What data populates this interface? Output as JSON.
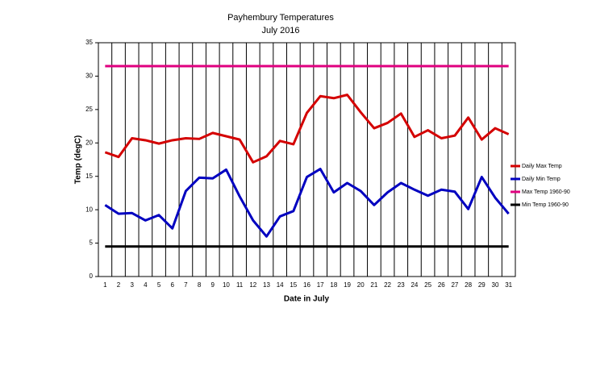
{
  "chart_data": {
    "type": "line",
    "title": "Payhembury Temperatures",
    "subtitle": "July 2016",
    "x_label": "Date in July",
    "y_label": "Temp (degC)",
    "categories": [
      "1",
      "2",
      "3",
      "4",
      "5",
      "6",
      "7",
      "8",
      "9",
      "10",
      "11",
      "12",
      "13",
      "14",
      "15",
      "16",
      "17",
      "18",
      "19",
      "20",
      "21",
      "22",
      "23",
      "24",
      "25",
      "26",
      "27",
      "28",
      "29",
      "30",
      "31"
    ],
    "series": [
      {
        "name": "Daily Max Temp",
        "color": "#d40000",
        "values": [
          18.6,
          17.9,
          20.7,
          20.4,
          19.9,
          20.4,
          20.7,
          20.6,
          21.5,
          21.0,
          20.5,
          17.1,
          18.0,
          20.3,
          19.8,
          24.5,
          27.0,
          26.7,
          27.2,
          24.6,
          22.2,
          23.0,
          24.4,
          20.9,
          21.9,
          20.7,
          21.1,
          23.8,
          20.5,
          22.2,
          21.3
        ]
      },
      {
        "name": "Daily Min Temp",
        "color": "#0000c0",
        "values": [
          10.7,
          9.4,
          9.5,
          8.4,
          9.2,
          7.2,
          12.8,
          14.8,
          14.7,
          16.0,
          12.0,
          8.4,
          6.0,
          9.0,
          9.8,
          14.9,
          16.1,
          12.6,
          14.0,
          12.8,
          10.7,
          12.6,
          14.0,
          13.0,
          12.1,
          13.0,
          12.7,
          10.1,
          14.9,
          11.8,
          9.4
        ]
      },
      {
        "name": "Max Temp  1960-90",
        "color": "#e0007f",
        "values": [
          31.5,
          31.5,
          31.5,
          31.5,
          31.5,
          31.5,
          31.5,
          31.5,
          31.5,
          31.5,
          31.5,
          31.5,
          31.5,
          31.5,
          31.5,
          31.5,
          31.5,
          31.5,
          31.5,
          31.5,
          31.5,
          31.5,
          31.5,
          31.5,
          31.5,
          31.5,
          31.5,
          31.5,
          31.5,
          31.5,
          31.5
        ]
      },
      {
        "name": "Min Temp  1960-90",
        "color": "#000000",
        "values": [
          4.5,
          4.5,
          4.5,
          4.5,
          4.5,
          4.5,
          4.5,
          4.5,
          4.5,
          4.5,
          4.5,
          4.5,
          4.5,
          4.5,
          4.5,
          4.5,
          4.5,
          4.5,
          4.5,
          4.5,
          4.5,
          4.5,
          4.5,
          4.5,
          4.5,
          4.5,
          4.5,
          4.5,
          4.5,
          4.5,
          4.5
        ]
      }
    ],
    "ylim": [
      0,
      35
    ],
    "yticks": [
      0,
      5,
      10,
      15,
      20,
      25,
      30,
      35
    ],
    "grid": "x",
    "legend": "right"
  }
}
